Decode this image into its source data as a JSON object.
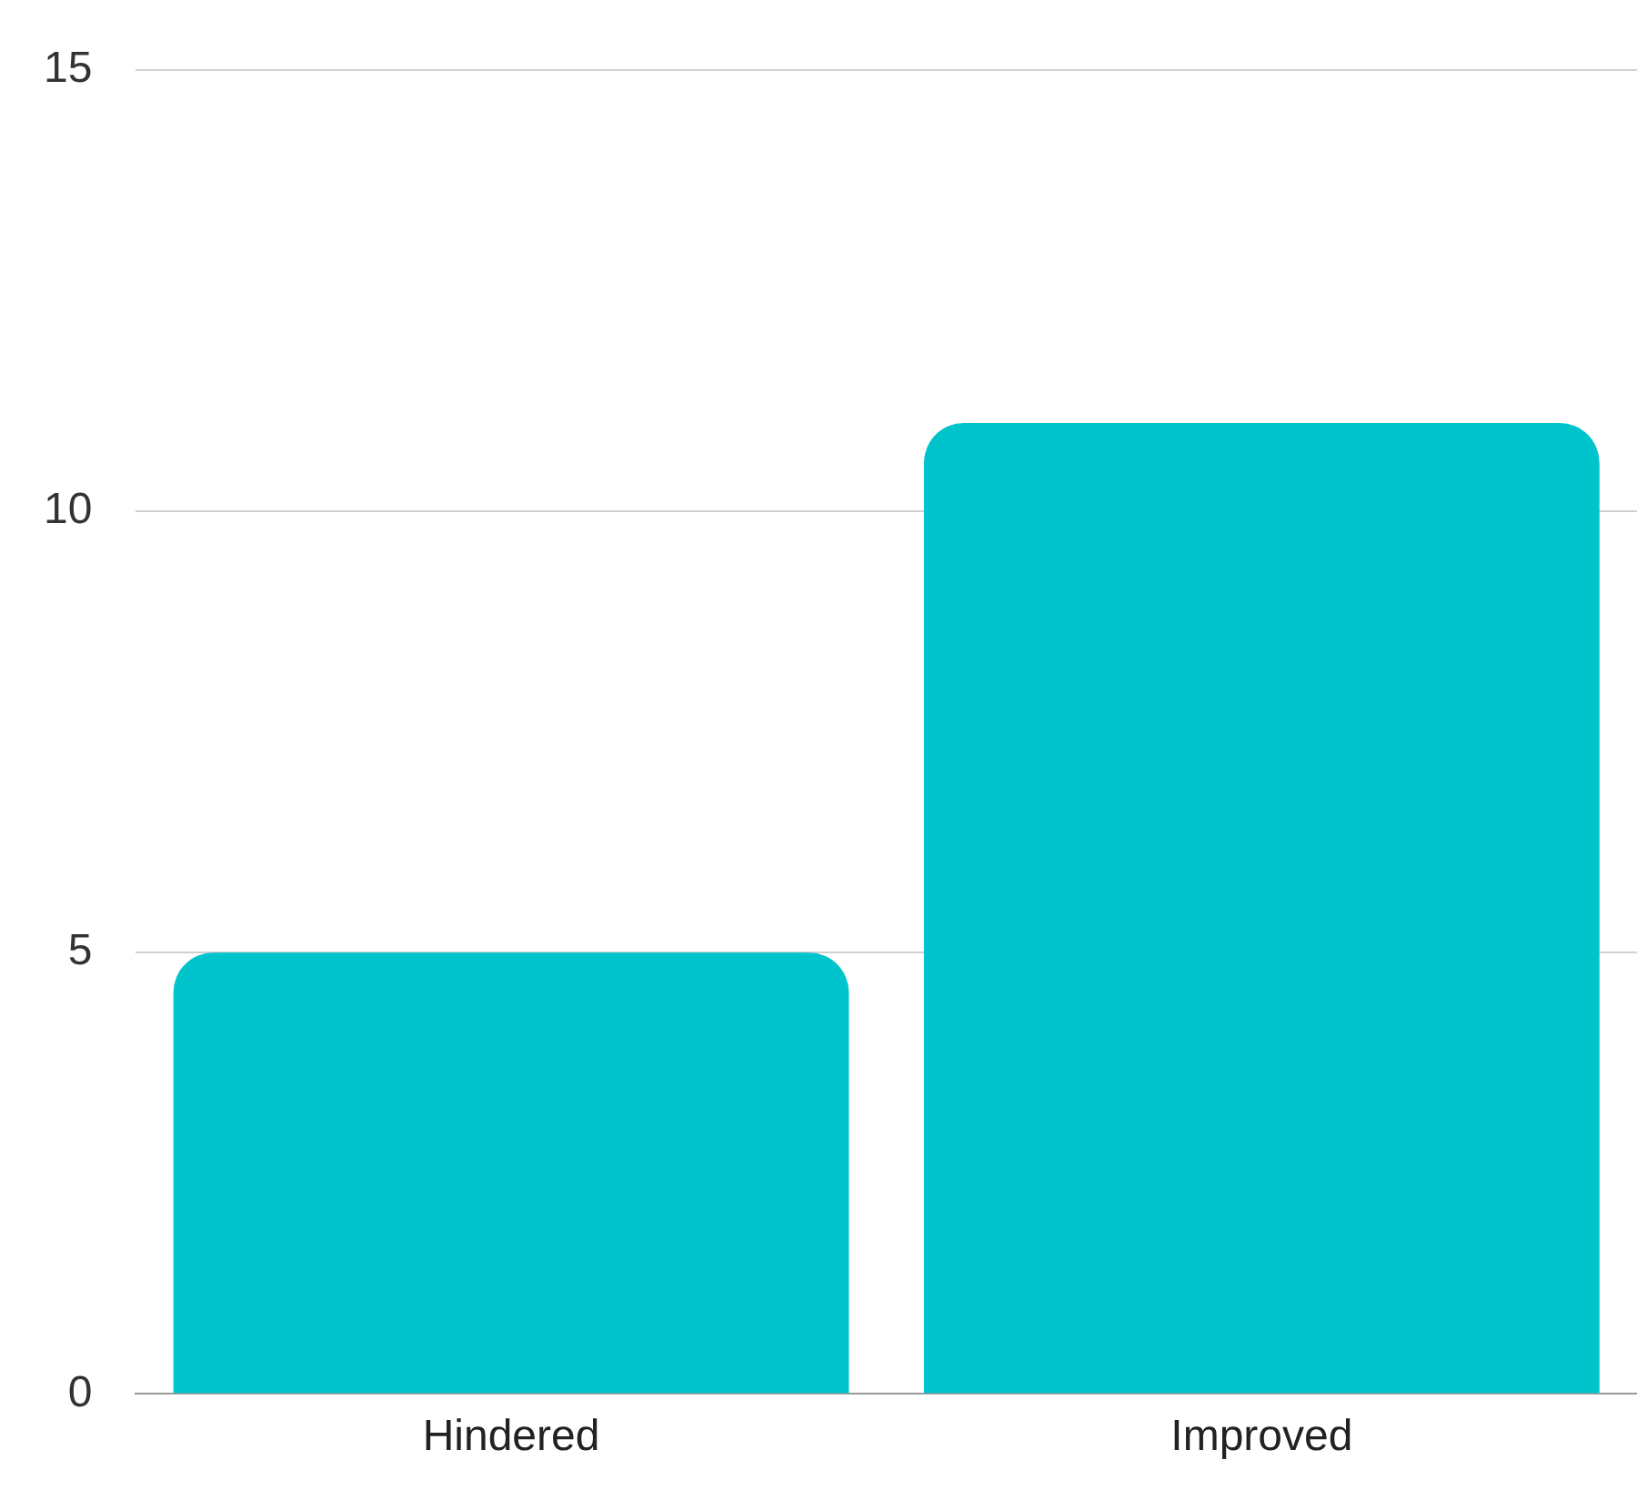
{
  "chart_data": {
    "type": "bar",
    "categories": [
      "Hindered",
      "Improved"
    ],
    "values": [
      5,
      11
    ],
    "color": "#00c4cc",
    "ylim": [
      0,
      15
    ],
    "yticks": [
      0,
      5,
      10,
      15
    ],
    "grid": "y",
    "legend": false
  }
}
